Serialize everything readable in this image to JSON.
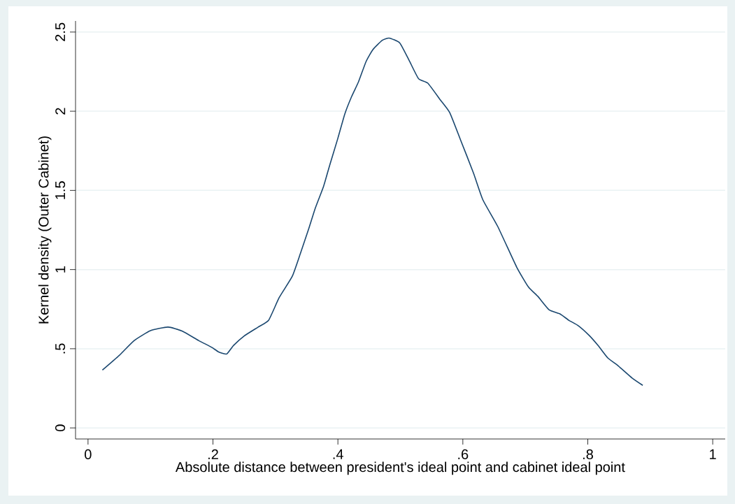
{
  "chart_data": {
    "type": "line",
    "xlabel": "Absolute distance between president's ideal point and cabinet ideal point",
    "ylabel": "Kernel density (Outer Cabinet)",
    "x": [
      0.023,
      0.05,
      0.074,
      0.1,
      0.128,
      0.151,
      0.177,
      0.198,
      0.209,
      0.222,
      0.233,
      0.25,
      0.272,
      0.289,
      0.306,
      0.327,
      0.34,
      0.353,
      0.364,
      0.377,
      0.387,
      0.4,
      0.411,
      0.422,
      0.433,
      0.445,
      0.456,
      0.471,
      0.482,
      0.499,
      0.514,
      0.529,
      0.544,
      0.564,
      0.579,
      0.596,
      0.617,
      0.632,
      0.656,
      0.686,
      0.705,
      0.72,
      0.738,
      0.755,
      0.77,
      0.785,
      0.802,
      0.817,
      0.832,
      0.849,
      0.871,
      0.888
    ],
    "series": [
      {
        "color": "#1a476f",
        "values": [
          0.365,
          0.458,
          0.552,
          0.614,
          0.637,
          0.611,
          0.552,
          0.509,
          0.48,
          0.467,
          0.521,
          0.581,
          0.636,
          0.679,
          0.823,
          0.958,
          1.102,
          1.254,
          1.39,
          1.525,
          1.661,
          1.83,
          1.982,
          2.093,
          2.186,
          2.313,
          2.389,
          2.448,
          2.462,
          2.431,
          2.321,
          2.206,
          2.177,
          2.071,
          1.991,
          1.822,
          1.61,
          1.441,
          1.271,
          1.017,
          0.89,
          0.831,
          0.746,
          0.721,
          0.679,
          0.645,
          0.585,
          0.518,
          0.442,
          0.391,
          0.315,
          0.269
        ]
      }
    ],
    "xlim": [
      -0.02,
      1.02
    ],
    "ylim": [
      -0.07,
      2.57
    ],
    "xticks": [
      0,
      {
        "value": 0.2,
        "label": ".2"
      },
      {
        "value": 0.4,
        "label": ".4"
      },
      {
        "value": 0.6,
        "label": ".6"
      },
      {
        "value": 0.8,
        "label": ".8"
      },
      1
    ],
    "yticks": [
      0,
      {
        "value": 0.5,
        "label": ".5"
      },
      1,
      1.5,
      2,
      2.5
    ],
    "grid": "y",
    "marker": "none",
    "line_style": "solid"
  }
}
